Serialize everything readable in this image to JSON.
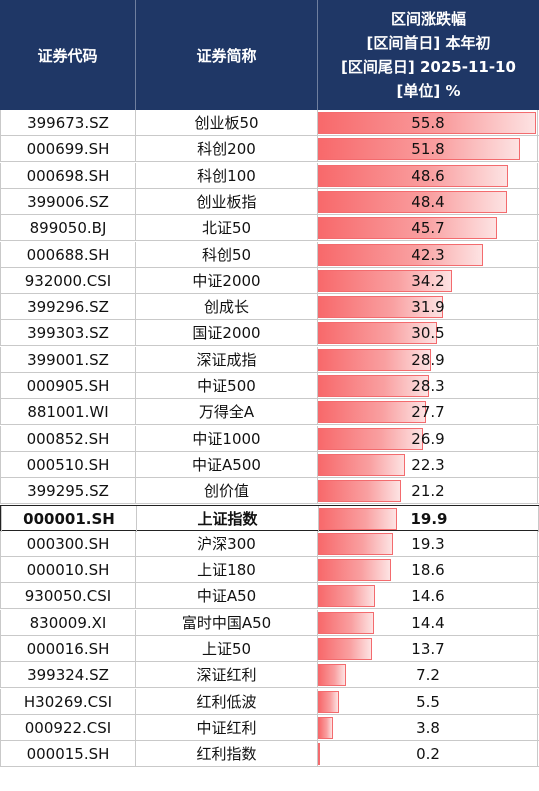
{
  "header": {
    "col_code": "证券代码",
    "col_name": "证券简称",
    "col_value_lines": [
      "区间涨跌幅",
      "[区间首日] 本年初",
      "[区间尾日] 2025-11-10",
      "[单位] %"
    ]
  },
  "chart_data": {
    "type": "table",
    "columns": [
      "证券代码",
      "证券简称",
      "区间涨跌幅 [区间首日] 本年初 [区间尾日] 2025-11-10 [单位] %"
    ],
    "bar_max": 55.8,
    "highlight_row_index": 15,
    "colors": {
      "header_bg": "#1f3766",
      "bar": "#f8696b",
      "highlight_border": "#222222"
    },
    "rows": [
      {
        "code": "399673.SZ",
        "name": "创业板50",
        "value": "55.8"
      },
      {
        "code": "000699.SH",
        "name": "科创200",
        "value": "51.8"
      },
      {
        "code": "000698.SH",
        "name": "科创100",
        "value": "48.6"
      },
      {
        "code": "399006.SZ",
        "name": "创业板指",
        "value": "48.4"
      },
      {
        "code": "899050.BJ",
        "name": "北证50",
        "value": "45.7"
      },
      {
        "code": "000688.SH",
        "name": "科创50",
        "value": "42.3"
      },
      {
        "code": "932000.CSI",
        "name": "中证2000",
        "value": "34.2"
      },
      {
        "code": "399296.SZ",
        "name": "创成长",
        "value": "31.9"
      },
      {
        "code": "399303.SZ",
        "name": "国证2000",
        "value": "30.5"
      },
      {
        "code": "399001.SZ",
        "name": "深证成指",
        "value": "28.9"
      },
      {
        "code": "000905.SH",
        "name": "中证500",
        "value": "28.3"
      },
      {
        "code": "881001.WI",
        "name": "万得全A",
        "value": "27.7"
      },
      {
        "code": "000852.SH",
        "name": "中证1000",
        "value": "26.9"
      },
      {
        "code": "000510.SH",
        "name": "中证A500",
        "value": "22.3"
      },
      {
        "code": "399295.SZ",
        "name": "创价值",
        "value": "21.2"
      },
      {
        "code": "000001.SH",
        "name": "上证指数",
        "value": "19.9"
      },
      {
        "code": "000300.SH",
        "name": "沪深300",
        "value": "19.3"
      },
      {
        "code": "000010.SH",
        "name": "上证180",
        "value": "18.6"
      },
      {
        "code": "930050.CSI",
        "name": "中证A50",
        "value": "14.6"
      },
      {
        "code": "830009.XI",
        "name": "富时中国A50",
        "value": "14.4"
      },
      {
        "code": "000016.SH",
        "name": "上证50",
        "value": "13.7"
      },
      {
        "code": "399324.SZ",
        "name": "深证红利",
        "value": "7.2"
      },
      {
        "code": "H30269.CSI",
        "name": "红利低波",
        "value": "5.5"
      },
      {
        "code": "000922.CSI",
        "name": "中证红利",
        "value": "3.8"
      },
      {
        "code": "000015.SH",
        "name": "红利指数",
        "value": "0.2"
      }
    ]
  }
}
